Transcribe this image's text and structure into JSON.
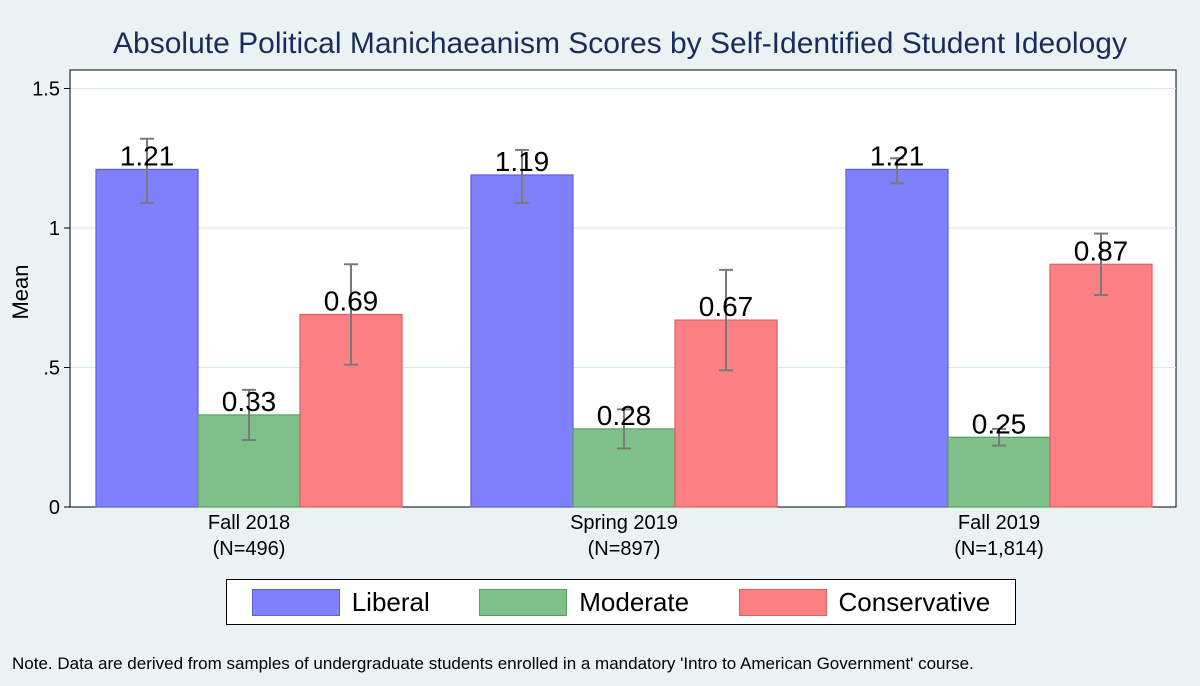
{
  "chart_data": {
    "type": "bar",
    "title": "Absolute Political Manichaeanism Scores by Self-Identified Student Ideology",
    "ylabel": "Mean",
    "ylim": [
      0,
      1.6
    ],
    "yticks": [
      {
        "value": 0,
        "label": "0"
      },
      {
        "value": 0.5,
        "label": ".5"
      },
      {
        "value": 1,
        "label": "1"
      },
      {
        "value": 1.5,
        "label": "1.5"
      }
    ],
    "grid": true,
    "legend_position": "bottom",
    "categories": [
      {
        "line1": "Fall 2018",
        "line2": "(N=496)"
      },
      {
        "line1": "Spring 2019",
        "line2": "(N=897)"
      },
      {
        "line1": "Fall 2019",
        "line2": "(N=1,814)"
      }
    ],
    "series": [
      {
        "name": "Liberal",
        "color": "#7f80fb",
        "stroke": "#5e5fd8",
        "values": [
          1.21,
          1.19,
          1.21
        ],
        "labels": [
          "1.21",
          "1.19",
          "1.21"
        ],
        "error_low": [
          1.09,
          1.09,
          1.16
        ],
        "error_high": [
          1.32,
          1.28,
          1.25
        ]
      },
      {
        "name": "Moderate",
        "color": "#80c08a",
        "stroke": "#5a9e63",
        "values": [
          0.33,
          0.28,
          0.25
        ],
        "labels": [
          "0.33",
          "0.28",
          "0.25"
        ],
        "error_low": [
          0.24,
          0.21,
          0.22
        ],
        "error_high": [
          0.42,
          0.35,
          0.28
        ]
      },
      {
        "name": "Conservative",
        "color": "#fd8085",
        "stroke": "#dd5e63",
        "values": [
          0.69,
          0.67,
          0.87
        ],
        "labels": [
          "0.69",
          "0.67",
          "0.87"
        ],
        "error_low": [
          0.51,
          0.49,
          0.76
        ],
        "error_high": [
          0.87,
          0.85,
          0.98
        ]
      }
    ]
  },
  "note": "Note. Data are derived from samples of undergraduate students enrolled in a mandatory 'Intro to American Government' course."
}
